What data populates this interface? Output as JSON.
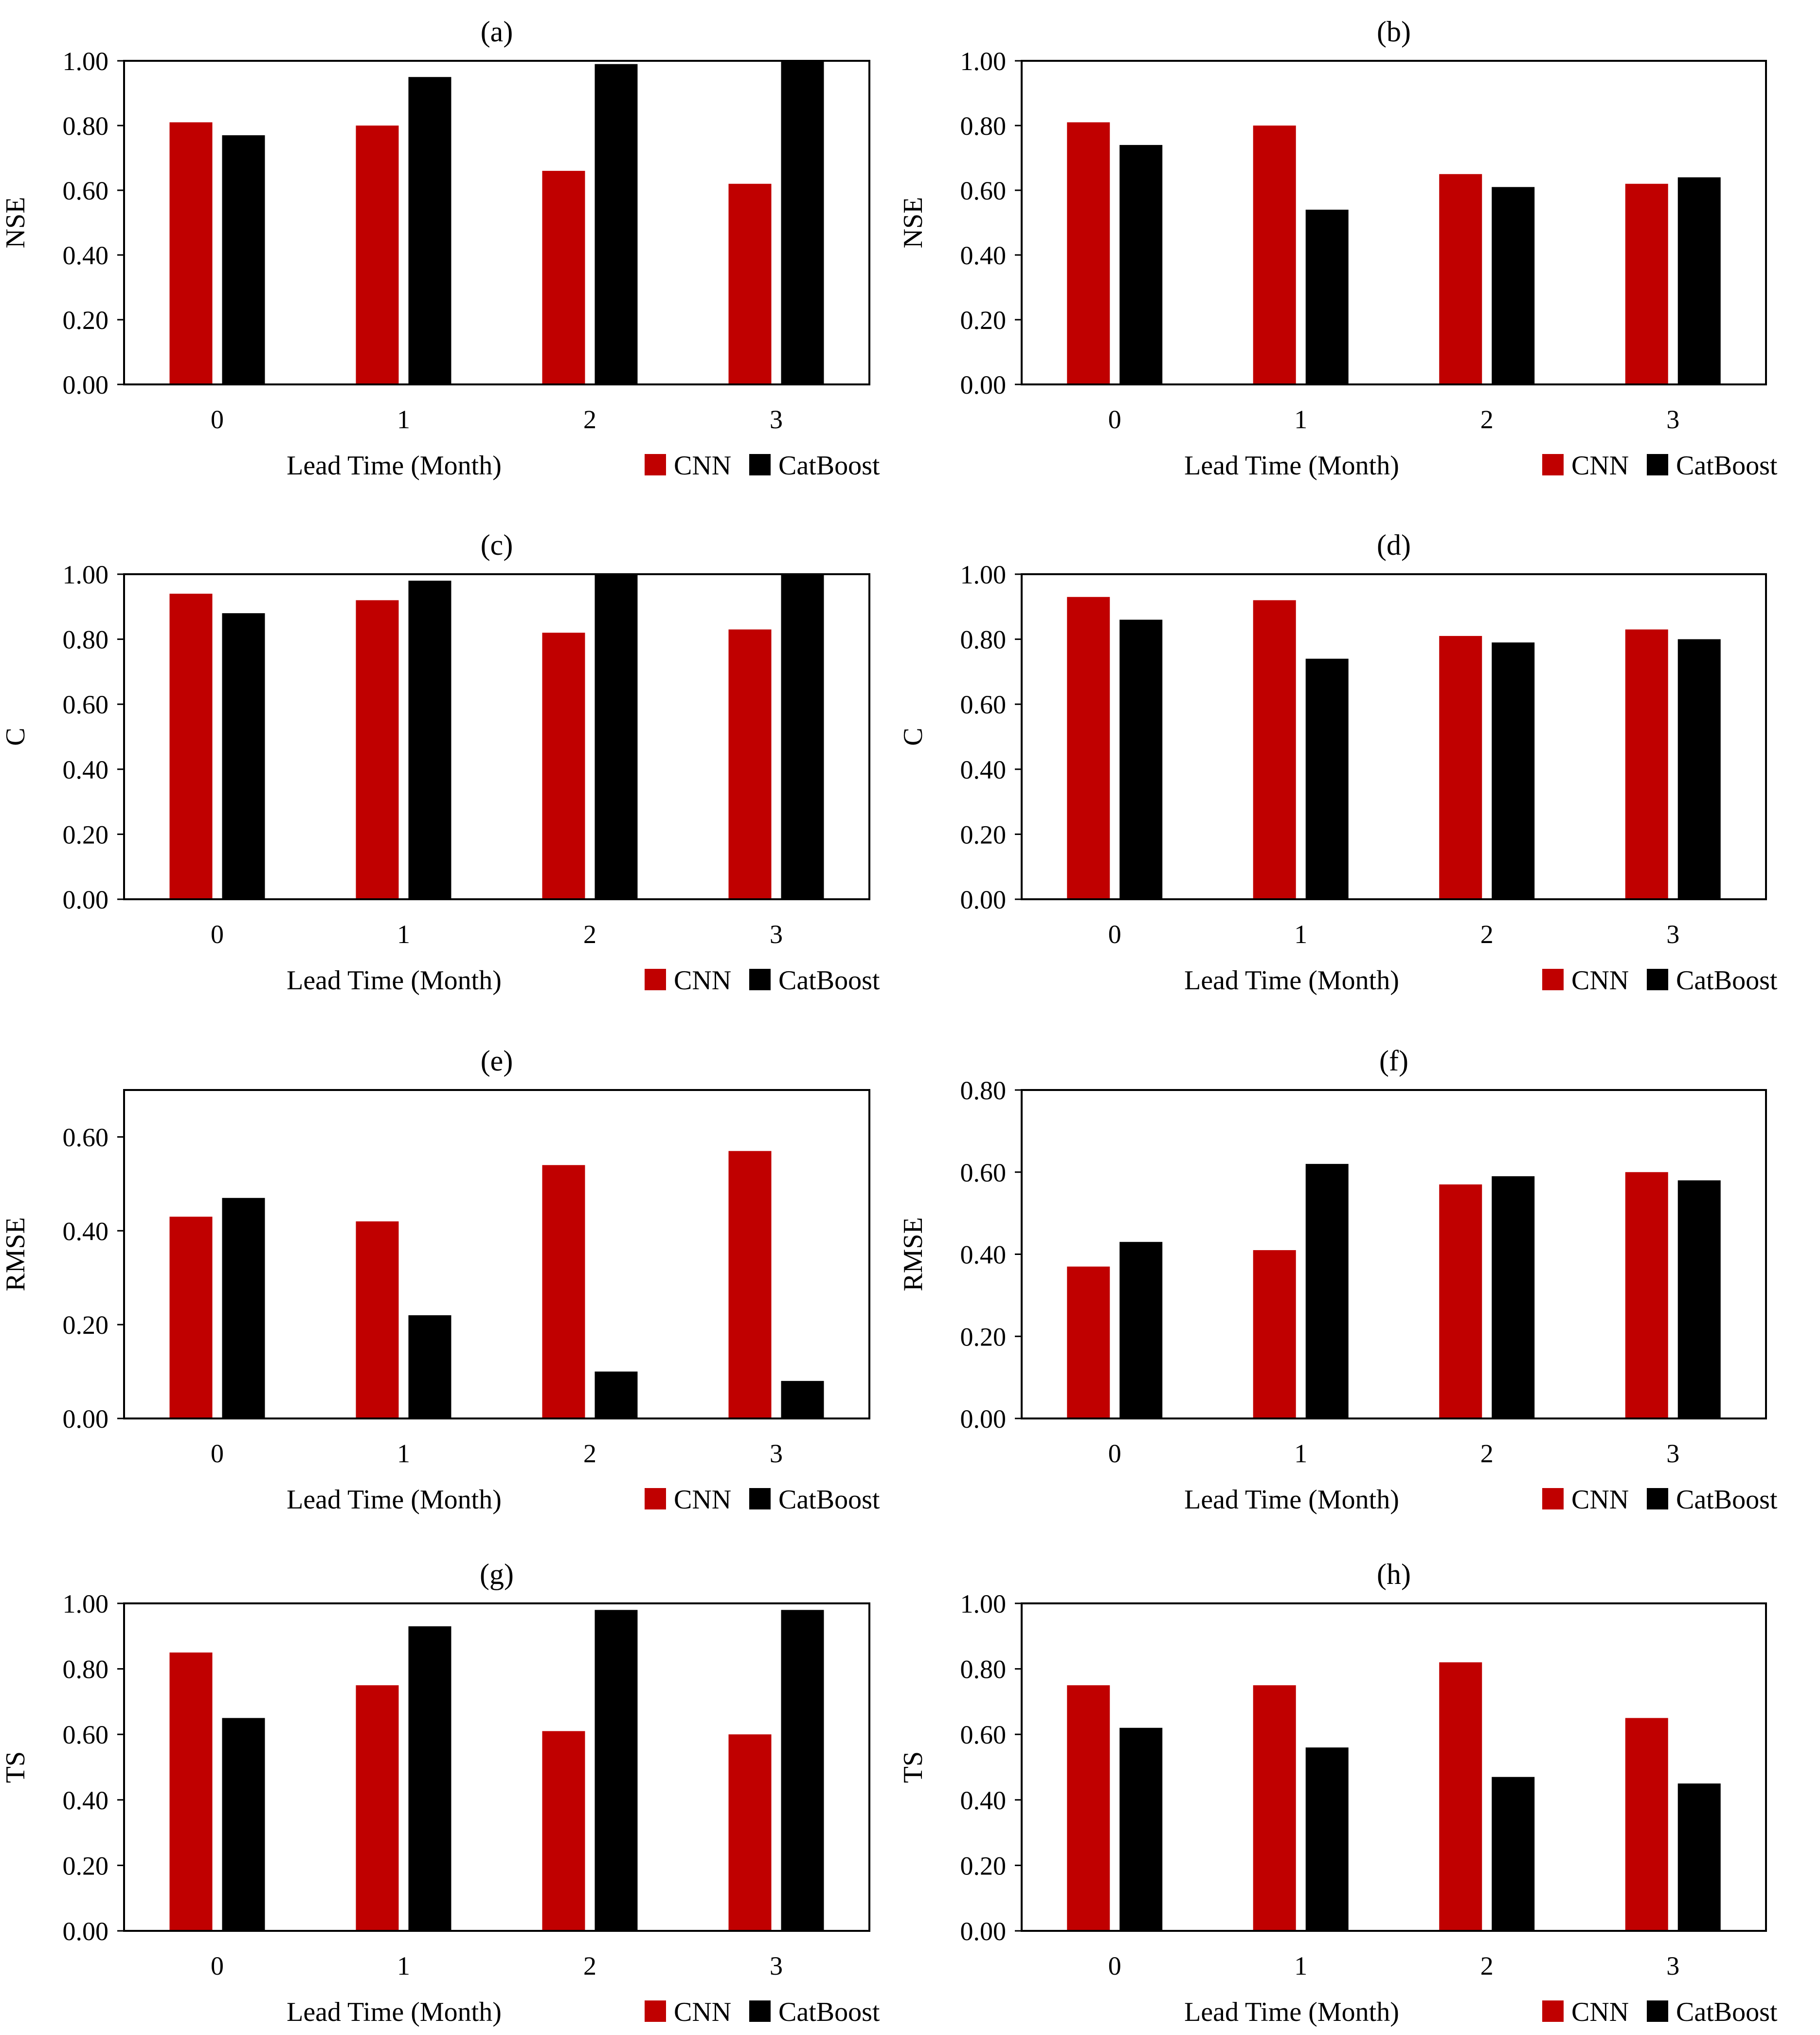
{
  "colors": {
    "cnn": "#c00000",
    "catboost": "#000000",
    "frame": "#000000"
  },
  "chart_data": [
    {
      "id": "a",
      "type": "bar",
      "title": "(a)",
      "ylabel": "NSE",
      "xlabel": "Lead Time (Month)",
      "categories": [
        "0",
        "1",
        "2",
        "3"
      ],
      "ylim": [
        0,
        1
      ],
      "yticks": [
        "0.00",
        "0.20",
        "0.40",
        "0.60",
        "0.80",
        "1.00"
      ],
      "legend": [
        "CNN",
        "CatBoost"
      ],
      "series": [
        {
          "name": "CNN",
          "values": [
            0.81,
            0.8,
            0.66,
            0.62
          ]
        },
        {
          "name": "CatBoost",
          "values": [
            0.77,
            0.95,
            0.99,
            1.0
          ]
        }
      ]
    },
    {
      "id": "b",
      "type": "bar",
      "title": "(b)",
      "ylabel": "NSE",
      "xlabel": "Lead Time (Month)",
      "categories": [
        "0",
        "1",
        "2",
        "3"
      ],
      "ylim": [
        0,
        1
      ],
      "yticks": [
        "0.00",
        "0.20",
        "0.40",
        "0.60",
        "0.80",
        "1.00"
      ],
      "legend": [
        "CNN",
        "CatBoost"
      ],
      "series": [
        {
          "name": "CNN",
          "values": [
            0.81,
            0.8,
            0.65,
            0.62
          ]
        },
        {
          "name": "CatBoost",
          "values": [
            0.74,
            0.54,
            0.61,
            0.64
          ]
        }
      ]
    },
    {
      "id": "c",
      "type": "bar",
      "title": "(c)",
      "ylabel": "C",
      "xlabel": "Lead Time (Month)",
      "categories": [
        "0",
        "1",
        "2",
        "3"
      ],
      "ylim": [
        0,
        1
      ],
      "yticks": [
        "0.00",
        "0.20",
        "0.40",
        "0.60",
        "0.80",
        "1.00"
      ],
      "legend": [
        "CNN",
        "CatBoost"
      ],
      "series": [
        {
          "name": "CNN",
          "values": [
            0.94,
            0.92,
            0.82,
            0.83
          ]
        },
        {
          "name": "CatBoost",
          "values": [
            0.88,
            0.98,
            1.0,
            1.0
          ]
        }
      ]
    },
    {
      "id": "d",
      "type": "bar",
      "title": "(d)",
      "ylabel": "C",
      "xlabel": "Lead Time (Month)",
      "categories": [
        "0",
        "1",
        "2",
        "3"
      ],
      "ylim": [
        0,
        1
      ],
      "yticks": [
        "0.00",
        "0.20",
        "0.40",
        "0.60",
        "0.80",
        "1.00"
      ],
      "legend": [
        "CNN",
        "CatBoost"
      ],
      "series": [
        {
          "name": "CNN",
          "values": [
            0.93,
            0.92,
            0.81,
            0.83
          ]
        },
        {
          "name": "CatBoost",
          "values": [
            0.86,
            0.74,
            0.79,
            0.8
          ]
        }
      ]
    },
    {
      "id": "e",
      "type": "bar",
      "title": "(e)",
      "ylabel": "RMSE",
      "xlabel": "Lead Time (Month)",
      "categories": [
        "0",
        "1",
        "2",
        "3"
      ],
      "ylim": [
        0,
        0.7
      ],
      "yticks": [
        "0.00",
        "0.20",
        "0.40",
        "0.60"
      ],
      "legend": [
        "CNN",
        "CatBoost"
      ],
      "series": [
        {
          "name": "CNN",
          "values": [
            0.43,
            0.42,
            0.54,
            0.57
          ]
        },
        {
          "name": "CatBoost",
          "values": [
            0.47,
            0.22,
            0.1,
            0.08
          ]
        }
      ]
    },
    {
      "id": "f",
      "type": "bar",
      "title": "(f)",
      "ylabel": "RMSE",
      "xlabel": "Lead Time (Month)",
      "categories": [
        "0",
        "1",
        "2",
        "3"
      ],
      "ylim": [
        0,
        0.8
      ],
      "yticks": [
        "0.00",
        "0.20",
        "0.40",
        "0.60",
        "0.80"
      ],
      "legend": [
        "CNN",
        "CatBoost"
      ],
      "series": [
        {
          "name": "CNN",
          "values": [
            0.37,
            0.41,
            0.57,
            0.6
          ]
        },
        {
          "name": "CatBoost",
          "values": [
            0.43,
            0.62,
            0.59,
            0.58
          ]
        }
      ]
    },
    {
      "id": "g",
      "type": "bar",
      "title": "(g)",
      "ylabel": "TS",
      "xlabel": "Lead Time (Month)",
      "categories": [
        "0",
        "1",
        "2",
        "3"
      ],
      "ylim": [
        0,
        1
      ],
      "yticks": [
        "0.00",
        "0.20",
        "0.40",
        "0.60",
        "0.80",
        "1.00"
      ],
      "legend": [
        "CNN",
        "CatBoost"
      ],
      "series": [
        {
          "name": "CNN",
          "values": [
            0.85,
            0.75,
            0.61,
            0.6
          ]
        },
        {
          "name": "CatBoost",
          "values": [
            0.65,
            0.93,
            0.98,
            0.98
          ]
        }
      ]
    },
    {
      "id": "h",
      "type": "bar",
      "title": "(h)",
      "ylabel": "TS",
      "xlabel": "Lead Time (Month)",
      "categories": [
        "0",
        "1",
        "2",
        "3"
      ],
      "ylim": [
        0,
        1
      ],
      "yticks": [
        "0.00",
        "0.20",
        "0.40",
        "0.60",
        "0.80",
        "1.00"
      ],
      "legend": [
        "CNN",
        "CatBoost"
      ],
      "series": [
        {
          "name": "CNN",
          "values": [
            0.75,
            0.75,
            0.82,
            0.65
          ]
        },
        {
          "name": "CatBoost",
          "values": [
            0.62,
            0.56,
            0.47,
            0.45
          ]
        }
      ]
    }
  ]
}
